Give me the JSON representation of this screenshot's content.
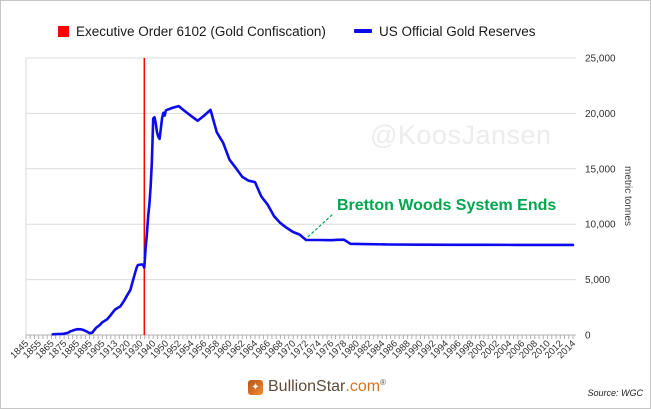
{
  "legend": {
    "items": [
      {
        "label": "Executive Order 6102 (Gold Confiscation)",
        "color": "#fe0000",
        "swatch": "square"
      },
      {
        "label": "US Official Gold Reserves",
        "color": "#0b0bee",
        "swatch": "line"
      }
    ]
  },
  "watermark": {
    "text": "@KoosJansen",
    "color": "#ececec"
  },
  "annotation": {
    "text": "Bretton Woods System Ends",
    "color": "#00a64e"
  },
  "footer": {
    "brand_icon": "✦",
    "brand_name": "BullionStar",
    "brand_tld": ".com",
    "registered_mark": "®",
    "brand_tld_color": "#d4731f",
    "source": "Source: WGC"
  },
  "chart_data": {
    "type": "line",
    "title": "",
    "xlabel": "",
    "ylabel": "metric tonnes",
    "ylim": [
      0,
      25000
    ],
    "yticks": [
      0,
      5000,
      10000,
      15000,
      20000,
      25000
    ],
    "ytick_labels": [
      "0",
      "5,000",
      "10,000",
      "15,000",
      "20,000",
      "25,000"
    ],
    "grid": true,
    "legend_position": "top",
    "x_axis_labels": [
      "1845",
      "1855",
      "1865",
      "1875",
      "1885",
      "1895",
      "1905",
      "1913",
      "1920",
      "1930",
      "1940",
      "1950",
      "1952",
      "1954",
      "1956",
      "1958",
      "1960",
      "1962",
      "1964",
      "1966",
      "1968",
      "1970",
      "1972",
      "1974",
      "1976",
      "1978",
      "1980",
      "1982",
      "1984",
      "1986",
      "1988",
      "1990",
      "1992",
      "1994",
      "1996",
      "1998",
      "2000",
      "2002",
      "2004",
      "2006",
      "2008",
      "2010",
      "2012",
      "2014"
    ],
    "series": [
      {
        "name": "US Official Gold Reserves",
        "color": "#0b0bee",
        "units": "metric tonnes",
        "points": [
          [
            1866,
            60
          ],
          [
            1870,
            90
          ],
          [
            1873,
            100
          ],
          [
            1875,
            120
          ],
          [
            1878,
            200
          ],
          [
            1880,
            330
          ],
          [
            1883,
            450
          ],
          [
            1885,
            520
          ],
          [
            1888,
            510
          ],
          [
            1890,
            460
          ],
          [
            1893,
            300
          ],
          [
            1895,
            170
          ],
          [
            1897,
            200
          ],
          [
            1900,
            640
          ],
          [
            1903,
            900
          ],
          [
            1905,
            1150
          ],
          [
            1908,
            1420
          ],
          [
            1910,
            1750
          ],
          [
            1913,
            2293
          ],
          [
            1916,
            2600
          ],
          [
            1918,
            3100
          ],
          [
            1920,
            3679
          ],
          [
            1922,
            4050
          ],
          [
            1924,
            4900
          ],
          [
            1926,
            5700
          ],
          [
            1927,
            6100
          ],
          [
            1928,
            6320
          ],
          [
            1930,
            6358
          ],
          [
            1932,
            6350
          ],
          [
            1933,
            6073
          ],
          [
            1934,
            7855
          ],
          [
            1935,
            8998
          ],
          [
            1936,
            10650
          ],
          [
            1937,
            11800
          ],
          [
            1938,
            13500
          ],
          [
            1939,
            15700
          ],
          [
            1940,
            19543
          ],
          [
            1941,
            19650
          ],
          [
            1942,
            19100
          ],
          [
            1943,
            18300
          ],
          [
            1944,
            17900
          ],
          [
            1945,
            17700
          ],
          [
            1946,
            18600
          ],
          [
            1947,
            19600
          ],
          [
            1948,
            20050
          ],
          [
            1949,
            19800
          ],
          [
            1950,
            20279
          ],
          [
            1951,
            20500
          ],
          [
            1952,
            20663
          ],
          [
            1953,
            20200
          ],
          [
            1954,
            19750
          ],
          [
            1955,
            19331
          ],
          [
            1956,
            19800
          ],
          [
            1957,
            20312
          ],
          [
            1958,
            18290
          ],
          [
            1959,
            17335
          ],
          [
            1960,
            15822
          ],
          [
            1961,
            15060
          ],
          [
            1962,
            14269
          ],
          [
            1963,
            13927
          ],
          [
            1964,
            13799
          ],
          [
            1965,
            12499
          ],
          [
            1966,
            11761
          ],
          [
            1967,
            10722
          ],
          [
            1968,
            10100
          ],
          [
            1969,
            9662
          ],
          [
            1970,
            9300
          ],
          [
            1971,
            9070
          ],
          [
            1972,
            8584
          ],
          [
            1974,
            8570
          ],
          [
            1976,
            8560
          ],
          [
            1977,
            8590
          ],
          [
            1978,
            8597
          ],
          [
            1979,
            8229
          ],
          [
            1980,
            8221
          ],
          [
            1985,
            8169
          ],
          [
            1990,
            8146
          ],
          [
            1995,
            8140
          ],
          [
            2000,
            8137
          ],
          [
            2005,
            8135
          ],
          [
            2010,
            8133
          ],
          [
            2014,
            8133
          ]
        ]
      }
    ],
    "event_line": {
      "label": "Executive Order 6102 (Gold Confiscation)",
      "year": 1933,
      "color": "#fe0000"
    },
    "annotation": {
      "text": "Bretton Woods System Ends",
      "color": "#00a64e",
      "attach_year": 1972
    }
  }
}
